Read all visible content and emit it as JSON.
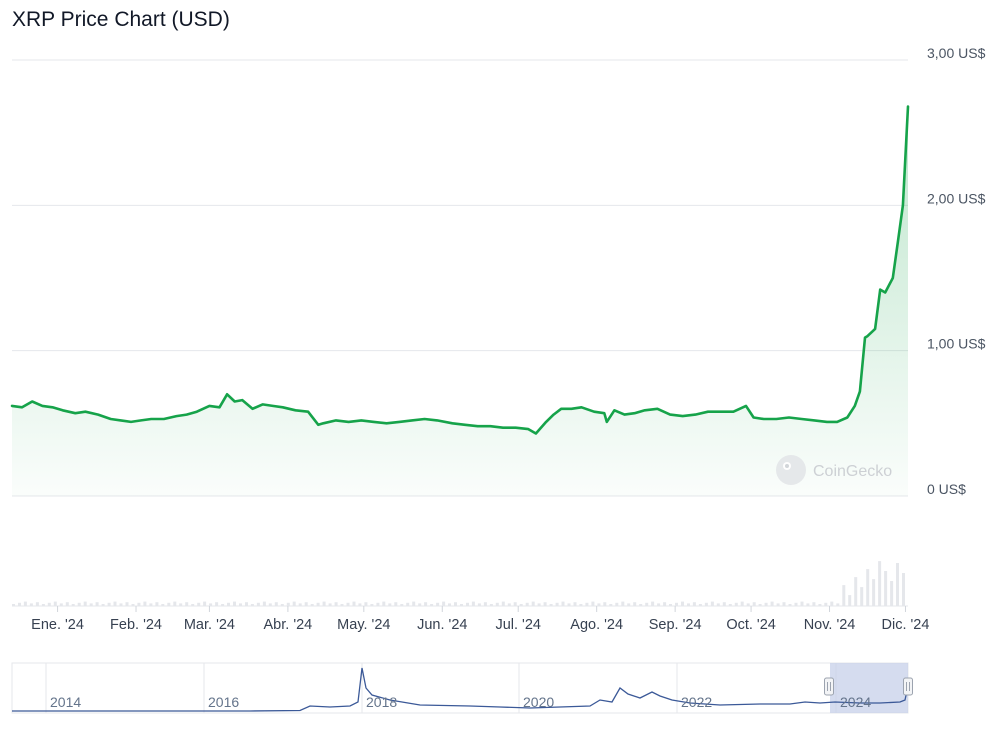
{
  "chart_data": {
    "type": "area",
    "title": "XRP Price Chart (USD)",
    "currency_unit": "US$",
    "y_ticks": [
      "3,00 US$",
      "2,00 US$",
      "1,00 US$",
      "0 US$"
    ],
    "y_tick_values": [
      3,
      2,
      1,
      0
    ],
    "ylim": [
      0,
      3
    ],
    "x_ticks": [
      "Ene. '24",
      "Feb. '24",
      "Mar. '24",
      "Abr. '24",
      "May. '24",
      "Jun. '24",
      "Jul. '24",
      "Ago. '24",
      "Sep. '24",
      "Oct. '24",
      "Nov. '24",
      "Dic. '24"
    ],
    "x_tick_dates": [
      "2024-01-01",
      "2024-02-01",
      "2024-03-01",
      "2024-04-01",
      "2024-05-01",
      "2024-06-01",
      "2024-07-01",
      "2024-08-01",
      "2024-09-01",
      "2024-10-01",
      "2024-11-01",
      "2024-12-01"
    ],
    "x_range": [
      "2023-12-14",
      "2024-12-02"
    ],
    "grid": true,
    "line_color": "#16a34a",
    "watermark": "CoinGecko",
    "series": [
      {
        "x": [
          "2023-12-14",
          "2023-12-18",
          "2023-12-22",
          "2023-12-26",
          "2023-12-30",
          "2024-01-03",
          "2024-01-08",
          "2024-01-12",
          "2024-01-17",
          "2024-01-22",
          "2024-01-26",
          "2024-01-30",
          "2024-02-03",
          "2024-02-07",
          "2024-02-12",
          "2024-02-17",
          "2024-02-21",
          "2024-02-25",
          "2024-03-01",
          "2024-03-05",
          "2024-03-08",
          "2024-03-11",
          "2024-03-14",
          "2024-03-18",
          "2024-03-22",
          "2024-03-26",
          "2024-03-30",
          "2024-04-04",
          "2024-04-09",
          "2024-04-13",
          "2024-04-15",
          "2024-04-20",
          "2024-04-25",
          "2024-04-30",
          "2024-05-05",
          "2024-05-10",
          "2024-05-15",
          "2024-05-20",
          "2024-05-25",
          "2024-05-30",
          "2024-06-05",
          "2024-06-10",
          "2024-06-15",
          "2024-06-20",
          "2024-06-25",
          "2024-06-30",
          "2024-07-05",
          "2024-07-08",
          "2024-07-12",
          "2024-07-15",
          "2024-07-18",
          "2024-07-22",
          "2024-07-26",
          "2024-07-31",
          "2024-08-04",
          "2024-08-05",
          "2024-08-08",
          "2024-08-12",
          "2024-08-16",
          "2024-08-20",
          "2024-08-25",
          "2024-08-30",
          "2024-09-04",
          "2024-09-09",
          "2024-09-14",
          "2024-09-19",
          "2024-09-24",
          "2024-09-29",
          "2024-10-02",
          "2024-10-06",
          "2024-10-11",
          "2024-10-16",
          "2024-10-21",
          "2024-10-26",
          "2024-10-31",
          "2024-11-04",
          "2024-11-08",
          "2024-11-11",
          "2024-11-13",
          "2024-11-15",
          "2024-11-16",
          "2024-11-19",
          "2024-11-21",
          "2024-11-23",
          "2024-11-26",
          "2024-11-28",
          "2024-11-30",
          "2024-12-02"
        ],
        "y": [
          0.62,
          0.61,
          0.65,
          0.62,
          0.61,
          0.59,
          0.57,
          0.58,
          0.56,
          0.53,
          0.52,
          0.51,
          0.52,
          0.53,
          0.53,
          0.55,
          0.56,
          0.58,
          0.62,
          0.61,
          0.7,
          0.65,
          0.66,
          0.6,
          0.63,
          0.62,
          0.61,
          0.59,
          0.58,
          0.49,
          0.5,
          0.52,
          0.51,
          0.52,
          0.51,
          0.5,
          0.51,
          0.52,
          0.53,
          0.52,
          0.5,
          0.49,
          0.48,
          0.48,
          0.47,
          0.47,
          0.46,
          0.43,
          0.51,
          0.56,
          0.6,
          0.6,
          0.61,
          0.58,
          0.57,
          0.51,
          0.59,
          0.56,
          0.57,
          0.59,
          0.6,
          0.56,
          0.55,
          0.56,
          0.58,
          0.58,
          0.58,
          0.62,
          0.54,
          0.53,
          0.53,
          0.54,
          0.53,
          0.52,
          0.51,
          0.51,
          0.54,
          0.62,
          0.72,
          1.09,
          1.1,
          1.15,
          1.42,
          1.4,
          1.5,
          1.75,
          2.0,
          2.68
        ]
      }
    ],
    "volume_note": "small volume bars beneath main chart",
    "navigator": {
      "x_ticks": [
        "2014",
        "2016",
        "2018",
        "2020",
        "2022",
        "2024"
      ]
    }
  }
}
